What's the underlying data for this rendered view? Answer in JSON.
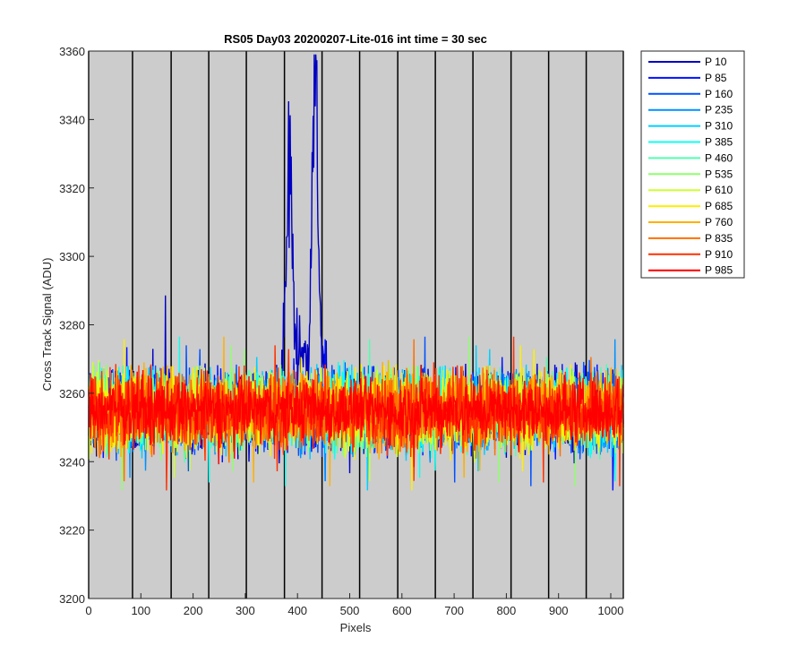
{
  "chart_data": {
    "type": "line",
    "title": "RS05 Day03 20200207-Lite-016 int time = 30 sec",
    "xlabel": "Pixels",
    "ylabel": "Cross Track Signal (ADU)",
    "xlim": [
      0,
      1024
    ],
    "ylim": [
      3200,
      3360
    ],
    "xticks": [
      0,
      100,
      200,
      300,
      400,
      500,
      600,
      700,
      800,
      900,
      1000
    ],
    "yticks": [
      3200,
      3220,
      3240,
      3260,
      3280,
      3300,
      3320,
      3340,
      3360
    ],
    "grid": false,
    "legend_position": "outside-top-right",
    "background": "#cccccc",
    "vertical_lines_x": [
      0,
      84,
      158,
      230,
      302,
      375,
      447,
      519,
      592,
      664,
      736,
      809,
      881,
      953,
      1024
    ],
    "series": [
      {
        "name": "P 10",
        "color": "#0000bf",
        "base": 3255,
        "spread": 10
      },
      {
        "name": "P 85",
        "color": "#0010ff",
        "base": 3255,
        "spread": 10
      },
      {
        "name": "P 160",
        "color": "#0050ff",
        "base": 3255,
        "spread": 10
      },
      {
        "name": "P 235",
        "color": "#0090ff",
        "base": 3255,
        "spread": 10
      },
      {
        "name": "P 310",
        "color": "#00cfff",
        "base": 3255,
        "spread": 10
      },
      {
        "name": "P 385",
        "color": "#10ffef",
        "base": 3255,
        "spread": 10
      },
      {
        "name": "P 460",
        "color": "#50ffaf",
        "base": 3255,
        "spread": 10
      },
      {
        "name": "P 535",
        "color": "#90ff6f",
        "base": 3255,
        "spread": 10
      },
      {
        "name": "P 610",
        "color": "#cfff30",
        "base": 3255,
        "spread": 10
      },
      {
        "name": "P 685",
        "color": "#ffef00",
        "base": 3255,
        "spread": 10
      },
      {
        "name": "P 760",
        "color": "#ffb000",
        "base": 3255,
        "spread": 10
      },
      {
        "name": "P 835",
        "color": "#ff7000",
        "base": 3255,
        "spread": 10
      },
      {
        "name": "P 910",
        "color": "#ff3000",
        "base": 3255,
        "spread": 10
      },
      {
        "name": "P 985",
        "color": "#ff0000",
        "base": 3255,
        "spread": 8
      }
    ],
    "peaks": [
      {
        "series": "P 10",
        "x": 384,
        "y": 3330
      },
      {
        "series": "P 10",
        "x": 434,
        "y": 3355
      }
    ]
  }
}
